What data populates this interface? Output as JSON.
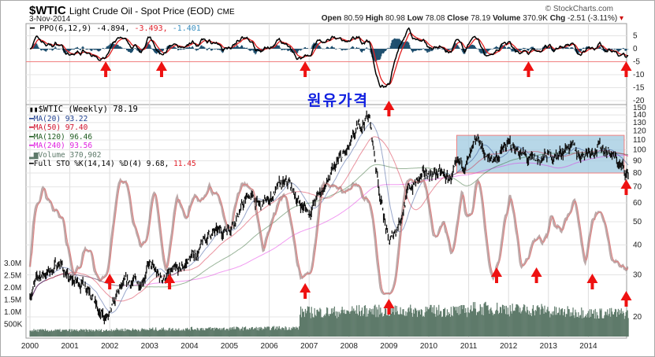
{
  "header": {
    "symbol": "$WTIC",
    "name": "Light Crude Oil - Spot Price (EOD)",
    "exchange": "CME",
    "date": "3-Nov-2014",
    "copyright": "© StockCharts.com",
    "open_label": "Open",
    "open": "80.59",
    "high_label": "High",
    "high": "80.98",
    "low_label": "Low",
    "low": "78.08",
    "close_label": "Close",
    "close": "78.19",
    "volume_label": "Volume",
    "volume": "370.9K",
    "chg_label": "Chg",
    "chg": "-2.51 (-3.11%)"
  },
  "ppo_legend": {
    "label": "PPO(6,12,9)",
    "v1": "-4.894,",
    "v2": "-3.493,",
    "v3": "-1.401"
  },
  "price_legend": {
    "title": "$WTIC (Weekly) 78.19",
    "ma20": "MA(20) 93.22",
    "ma50": "MA(50) 97.40",
    "ma120": "MA(120) 96.46",
    "ma240": "MA(240) 93.56",
    "volume": "Volume 370,902",
    "sto": "Full STO %K(14,14) %D(4) 9.68,",
    "sto2": "11.45"
  },
  "annotation": "원유가격",
  "colors": {
    "ma20": "#1f3f8f",
    "ma50": "#d0102a",
    "ma120": "#1e5a1e",
    "ma240": "#e020e0",
    "volume": "#5e7a6a",
    "box": "#9fc9e0",
    "arrow": "#ee1111",
    "ppo_hist": "#1e4f6e"
  },
  "chart_data": [
    {
      "type": "line",
      "title": "PPO(6,12,9)",
      "ylim": [
        -22,
        8
      ],
      "yticks": [
        "5",
        "0",
        "-5",
        "-10",
        "-15",
        "-20"
      ],
      "signal_line": -5
    },
    {
      "type": "candlestick",
      "title": "$WTIC (Weekly)",
      "scale": "log",
      "ylim": [
        18,
        155
      ],
      "yticks": [
        "150",
        "140",
        "130",
        "120",
        "110",
        "100",
        "90",
        "80",
        "70",
        "60",
        "50",
        "40",
        "30",
        "20"
      ],
      "xticks": [
        "2000",
        "2001",
        "2002",
        "2003",
        "2004",
        "2005",
        "2006",
        "2007",
        "2008",
        "2009",
        "2010",
        "2011",
        "2012",
        "2013",
        "2014"
      ],
      "price_anchors_quarterly": [
        25,
        30,
        31,
        34,
        28,
        28,
        27,
        20,
        20,
        26,
        28,
        28,
        33,
        29,
        30,
        31,
        35,
        38,
        45,
        45,
        48,
        55,
        65,
        58,
        62,
        70,
        72,
        60,
        55,
        65,
        75,
        90,
        100,
        125,
        140,
        70,
        40,
        50,
        68,
        75,
        80,
        80,
        75,
        85,
        90,
        110,
        90,
        95,
        105,
        100,
        90,
        90,
        95,
        95,
        105,
        95,
        100,
        103,
        100,
        88,
        78.19
      ],
      "volume_yticks": [
        "3.0M",
        "2.5M",
        "2.0M",
        "1.5M",
        "1.0M",
        "500K"
      ],
      "volume_anchors_yearly_M": [
        0.25,
        0.25,
        0.28,
        0.3,
        0.32,
        0.33,
        0.35,
        1.0,
        1.05,
        1.05,
        1.05,
        1.15,
        1.1,
        1.0,
        0.95
      ],
      "highlight_box": {
        "from": 2010.7,
        "to": 2014.9,
        "low": 80,
        "high": 115
      },
      "arrows_ppo": [
        2001.9,
        2003.3,
        2006.9,
        2009.0,
        2012.5,
        2014.95
      ],
      "arrows_price": [
        2002.0,
        2003.5,
        2006.9,
        2009.0,
        2011.7,
        2012.7,
        2014.1,
        2014.95
      ]
    }
  ]
}
